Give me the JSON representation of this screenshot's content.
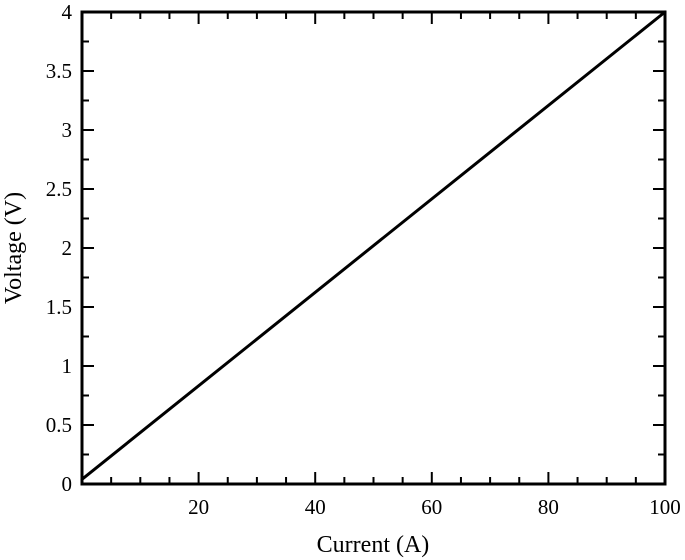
{
  "chart_data": {
    "type": "line",
    "xlabel": "Current (A)",
    "ylabel": "Voltage (V)",
    "xlim": [
      0,
      100
    ],
    "ylim": [
      0,
      4
    ],
    "x_ticks": [
      20,
      40,
      60,
      80,
      100
    ],
    "x_tick_labels": [
      "20",
      "40",
      "60",
      "80",
      "100"
    ],
    "y_ticks": [
      0,
      0.5,
      1,
      1.5,
      2,
      2.5,
      3,
      3.5,
      4
    ],
    "y_tick_labels": [
      "0",
      "0.5",
      "1",
      "1.5",
      "2",
      "2.5",
      "3",
      "3.5",
      "4"
    ],
    "grid": false,
    "legend": "none",
    "series": [
      {
        "x": [
          0,
          100
        ],
        "y": [
          0.04,
          4.0
        ],
        "color": "#000000"
      }
    ]
  }
}
